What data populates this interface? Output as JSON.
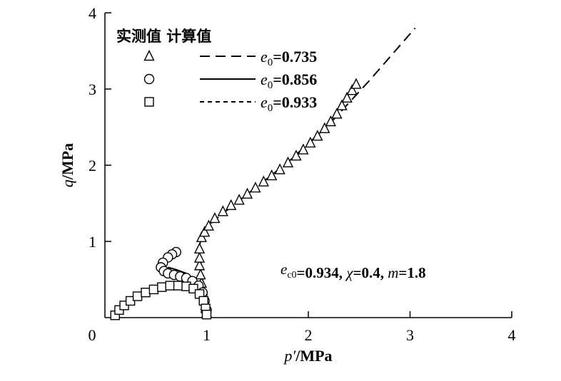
{
  "chart_data": {
    "type": "scatter",
    "x_axis": {
      "label_var": "p′",
      "label_unit": "/MPa",
      "min": 0,
      "max": 4,
      "ticks": [
        "0",
        "1",
        "2",
        "3",
        "4"
      ]
    },
    "y_axis": {
      "label_var": "q",
      "label_unit": "/MPa",
      "min": 0,
      "max": 4,
      "ticks": [
        "1",
        "2",
        "3",
        "4"
      ]
    },
    "legend": {
      "header_measured": "实测值",
      "header_calculated": "计算值",
      "placement": "top-left",
      "entries": [
        {
          "marker": "triangle",
          "line_style": "long-dash",
          "prefix": "e",
          "sub": "0",
          "value": "=0.735"
        },
        {
          "marker": "circle",
          "line_style": "solid",
          "prefix": "e",
          "sub": "0",
          "value": "=0.856"
        },
        {
          "marker": "square",
          "line_style": "short-dash",
          "prefix": "e",
          "sub": "0",
          "value": "=0.933"
        }
      ]
    },
    "annotation": {
      "parts": [
        {
          "text": "e",
          "italic": true
        },
        {
          "text": "c0",
          "sub": true
        },
        {
          "text": "=0.934, "
        },
        {
          "text": "χ",
          "italic": true
        },
        {
          "text": "=0.4, "
        },
        {
          "text": "m",
          "italic": true
        },
        {
          "text": "=1.8"
        }
      ]
    },
    "series": [
      {
        "marker": "triangle",
        "measured": [
          [
            1.0,
            0.06
          ],
          [
            0.99,
            0.16
          ],
          [
            0.98,
            0.26
          ],
          [
            0.96,
            0.35
          ],
          [
            0.95,
            0.45
          ],
          [
            0.94,
            0.56
          ],
          [
            0.93,
            0.68
          ],
          [
            0.93,
            0.78
          ],
          [
            0.93,
            0.9
          ],
          [
            0.95,
            1.05
          ],
          [
            0.98,
            1.12
          ],
          [
            1.02,
            1.2
          ],
          [
            1.08,
            1.3
          ],
          [
            1.16,
            1.39
          ],
          [
            1.24,
            1.47
          ],
          [
            1.32,
            1.54
          ],
          [
            1.4,
            1.62
          ],
          [
            1.48,
            1.7
          ],
          [
            1.56,
            1.78
          ],
          [
            1.64,
            1.86
          ],
          [
            1.72,
            1.94
          ],
          [
            1.8,
            2.03
          ],
          [
            1.88,
            2.12
          ],
          [
            1.95,
            2.2
          ],
          [
            2.02,
            2.29
          ],
          [
            2.09,
            2.38
          ],
          [
            2.16,
            2.48
          ],
          [
            2.22,
            2.57
          ],
          [
            2.28,
            2.67
          ],
          [
            2.33,
            2.78
          ],
          [
            2.38,
            2.88
          ],
          [
            2.43,
            2.98
          ],
          [
            2.47,
            3.06
          ]
        ],
        "calculated": [
          [
            1.0,
            0.05
          ],
          [
            0.98,
            0.3
          ],
          [
            0.95,
            0.6
          ],
          [
            0.93,
            0.95
          ],
          [
            0.96,
            1.1
          ],
          [
            1.05,
            1.25
          ],
          [
            1.4,
            1.62
          ],
          [
            1.8,
            2.04
          ],
          [
            2.2,
            2.53
          ],
          [
            2.6,
            3.11
          ],
          [
            3.05,
            3.8
          ]
        ]
      },
      {
        "marker": "circle",
        "measured": [
          [
            0.7,
            0.86
          ],
          [
            0.66,
            0.83
          ],
          [
            0.62,
            0.79
          ],
          [
            0.57,
            0.72
          ],
          [
            0.55,
            0.66
          ],
          [
            0.58,
            0.61
          ],
          [
            0.62,
            0.58
          ],
          [
            0.68,
            0.56
          ],
          [
            0.74,
            0.54
          ],
          [
            0.8,
            0.52
          ],
          [
            0.86,
            0.48
          ],
          [
            0.92,
            0.42
          ],
          [
            0.96,
            0.33
          ],
          [
            0.98,
            0.22
          ],
          [
            1.0,
            0.1
          ]
        ],
        "calculated": [
          [
            0.62,
            0.66
          ],
          [
            0.7,
            0.63
          ],
          [
            0.8,
            0.58
          ],
          [
            0.9,
            0.48
          ],
          [
            0.96,
            0.36
          ],
          [
            1.0,
            0.25
          ],
          [
            1.0,
            0.08
          ]
        ]
      },
      {
        "marker": "square",
        "measured": [
          [
            0.1,
            0.03
          ],
          [
            0.14,
            0.1
          ],
          [
            0.19,
            0.16
          ],
          [
            0.25,
            0.22
          ],
          [
            0.32,
            0.28
          ],
          [
            0.4,
            0.33
          ],
          [
            0.48,
            0.37
          ],
          [
            0.56,
            0.4
          ],
          [
            0.64,
            0.42
          ],
          [
            0.72,
            0.42
          ],
          [
            0.8,
            0.41
          ],
          [
            0.87,
            0.38
          ],
          [
            0.93,
            0.31
          ],
          [
            0.97,
            0.22
          ],
          [
            0.99,
            0.12
          ],
          [
            1.0,
            0.04
          ]
        ],
        "calculated": [
          [
            0.1,
            0.03
          ],
          [
            0.25,
            0.24
          ],
          [
            0.4,
            0.36
          ],
          [
            0.55,
            0.43
          ],
          [
            0.7,
            0.46
          ],
          [
            0.82,
            0.45
          ],
          [
            0.9,
            0.4
          ],
          [
            0.96,
            0.3
          ],
          [
            0.99,
            0.18
          ],
          [
            1.0,
            0.04
          ]
        ]
      }
    ]
  }
}
